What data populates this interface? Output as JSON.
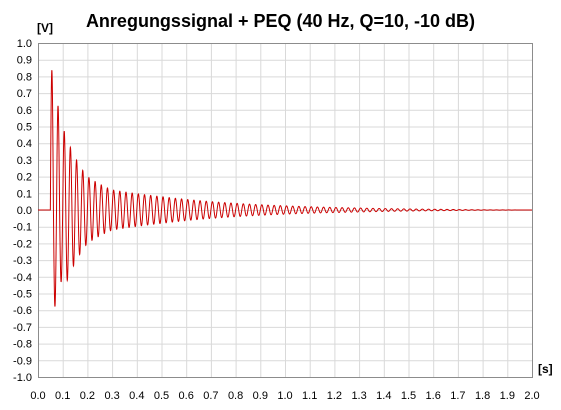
{
  "chart_data": {
    "type": "line",
    "title": "Anregungssignal  + PEQ (40 Hz, Q=10, -10 dB)",
    "ylabel": "[V]",
    "xlabel": "[s]",
    "xlim": [
      0.0,
      2.0
    ],
    "ylim": [
      -1.0,
      1.0
    ],
    "x_ticks": [
      "0.0",
      "0.1",
      "0.2",
      "0.3",
      "0.4",
      "0.5",
      "0.6",
      "0.7",
      "0.8",
      "0.9",
      "1.0",
      "1.1",
      "1.2",
      "1.3",
      "1.4",
      "1.5",
      "1.6",
      "1.7",
      "1.8",
      "1.9",
      "2.0"
    ],
    "y_ticks": [
      "1.0",
      "0.9",
      "0.8",
      "0.7",
      "0.6",
      "0.5",
      "0.4",
      "0.3",
      "0.2",
      "0.1",
      "0.0",
      "-0.1",
      "-0.2",
      "-0.3",
      "-0.4",
      "-0.5",
      "-0.6",
      "-0.7",
      "-0.8",
      "-0.9",
      "-1.0"
    ],
    "grid": true,
    "series": [
      {
        "color": "#cc0000",
        "signal_onset_s": 0.05,
        "frequency_hz": 40,
        "peak_max_v": 0.9,
        "peak_min_v": -0.72,
        "envelope_points": [
          {
            "t": 0.05,
            "amp": 0.9
          },
          {
            "t": 0.1,
            "amp": 0.5
          },
          {
            "t": 0.2,
            "amp": 0.2
          },
          {
            "t": 0.3,
            "amp": 0.12
          },
          {
            "t": 0.5,
            "amp": 0.08
          },
          {
            "t": 0.8,
            "amp": 0.04
          },
          {
            "t": 1.0,
            "amp": 0.025
          },
          {
            "t": 1.3,
            "amp": 0.012
          },
          {
            "t": 1.65,
            "amp": 0.004
          }
        ]
      }
    ]
  }
}
